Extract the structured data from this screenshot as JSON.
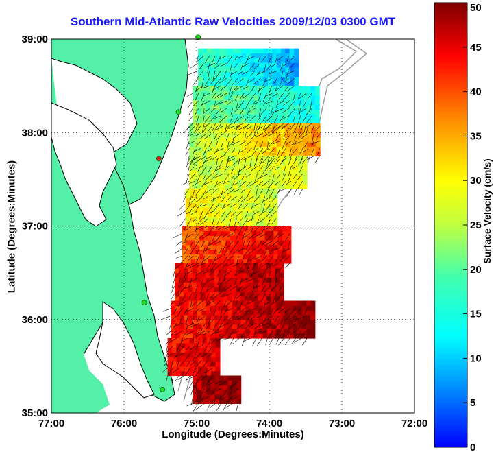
{
  "title": "Southern Mid-Atlantic Raw Velocities 2009/12/03 0300 GMT",
  "xlabel": "Longitude (Degrees:Minutes)",
  "ylabel": "Latitude (Degrees:Minutes)",
  "colorbar": {
    "label": "Surface Velocity (cm/s)",
    "min": 0,
    "max": 50,
    "ticks": [
      {
        "value": 0,
        "label": "0"
      },
      {
        "value": 5,
        "label": "5"
      },
      {
        "value": 10,
        "label": "10"
      },
      {
        "value": 15,
        "label": "15"
      },
      {
        "value": 20,
        "label": "20"
      },
      {
        "value": 25,
        "label": "25"
      },
      {
        "value": 30,
        "label": "30"
      },
      {
        "value": 35,
        "label": "35"
      },
      {
        "value": 40,
        "label": "40"
      },
      {
        "value": 45,
        "label": "45"
      },
      {
        "value": 50,
        "label": "50"
      }
    ],
    "colormap": "jet"
  },
  "axes": {
    "lon_min": -77,
    "lon_max": -72,
    "lat_min": 35,
    "lat_max": 39,
    "x_ticks": [
      {
        "value": -77,
        "label": "77:00"
      },
      {
        "value": -76,
        "label": "76:00"
      },
      {
        "value": -75,
        "label": "75:00"
      },
      {
        "value": -74,
        "label": "74:00"
      },
      {
        "value": -73,
        "label": "73:00"
      },
      {
        "value": -72,
        "label": "72:00"
      }
    ],
    "y_ticks": [
      {
        "value": 35,
        "label": "35:00"
      },
      {
        "value": 36,
        "label": "36:00"
      },
      {
        "value": 37,
        "label": "37:00"
      },
      {
        "value": 38,
        "label": "38:00"
      },
      {
        "value": 39,
        "label": "39:00"
      }
    ],
    "grid": "dotted"
  },
  "colors": {
    "land": "#55f0a8",
    "coast": "#000000",
    "bathymetry": "#999999",
    "title": "#1a1aff",
    "station": "#22dd22",
    "station_alt": "#dd2222"
  },
  "stations": [
    {
      "lon": -74.98,
      "lat": 39.02,
      "color": "#22dd22"
    },
    {
      "lon": -75.25,
      "lat": 38.22,
      "color": "#22dd22"
    },
    {
      "lon": -75.52,
      "lat": 37.72,
      "color": "#dd2222"
    },
    {
      "lon": -75.72,
      "lat": 36.18,
      "color": "#22dd22"
    },
    {
      "lon": -75.47,
      "lat": 35.25,
      "color": "#22dd22"
    }
  ],
  "velocity_field": {
    "regions": [
      {
        "lat_from": 38.5,
        "lat_to": 38.9,
        "lon_from": -74.98,
        "lon_to": -73.65,
        "speed_west": 18,
        "speed_east": 8
      },
      {
        "lat_from": 38.1,
        "lat_to": 38.5,
        "lon_from": -75.05,
        "lon_to": -73.35,
        "speed_west": 22,
        "speed_east": 14
      },
      {
        "lat_from": 37.75,
        "lat_to": 38.1,
        "lon_from": -75.1,
        "lon_to": -73.3,
        "speed_west": 24,
        "speed_east": 38
      },
      {
        "lat_from": 37.4,
        "lat_to": 37.75,
        "lon_from": -75.1,
        "lon_to": -73.5,
        "speed_west": 26,
        "speed_east": 28
      },
      {
        "lat_from": 37.0,
        "lat_to": 37.4,
        "lon_from": -75.15,
        "lon_to": -73.9,
        "speed_west": 30,
        "speed_east": 26
      },
      {
        "lat_from": 36.6,
        "lat_to": 37.0,
        "lon_from": -75.2,
        "lon_to": -73.7,
        "speed_west": 40,
        "speed_east": 45
      },
      {
        "lat_from": 36.2,
        "lat_to": 36.6,
        "lon_from": -75.3,
        "lon_to": -73.8,
        "speed_west": 44,
        "speed_east": 48
      },
      {
        "lat_from": 35.8,
        "lat_to": 36.2,
        "lon_from": -75.35,
        "lon_to": -73.4,
        "speed_west": 42,
        "speed_east": 50
      },
      {
        "lat_from": 35.4,
        "lat_to": 35.8,
        "lon_from": -75.4,
        "lon_to": -74.7,
        "speed_west": 44,
        "speed_east": 46
      },
      {
        "lat_from": 35.1,
        "lat_to": 35.4,
        "lon_from": -75.05,
        "lon_to": -74.4,
        "speed_west": 48,
        "speed_east": 50
      }
    ]
  }
}
